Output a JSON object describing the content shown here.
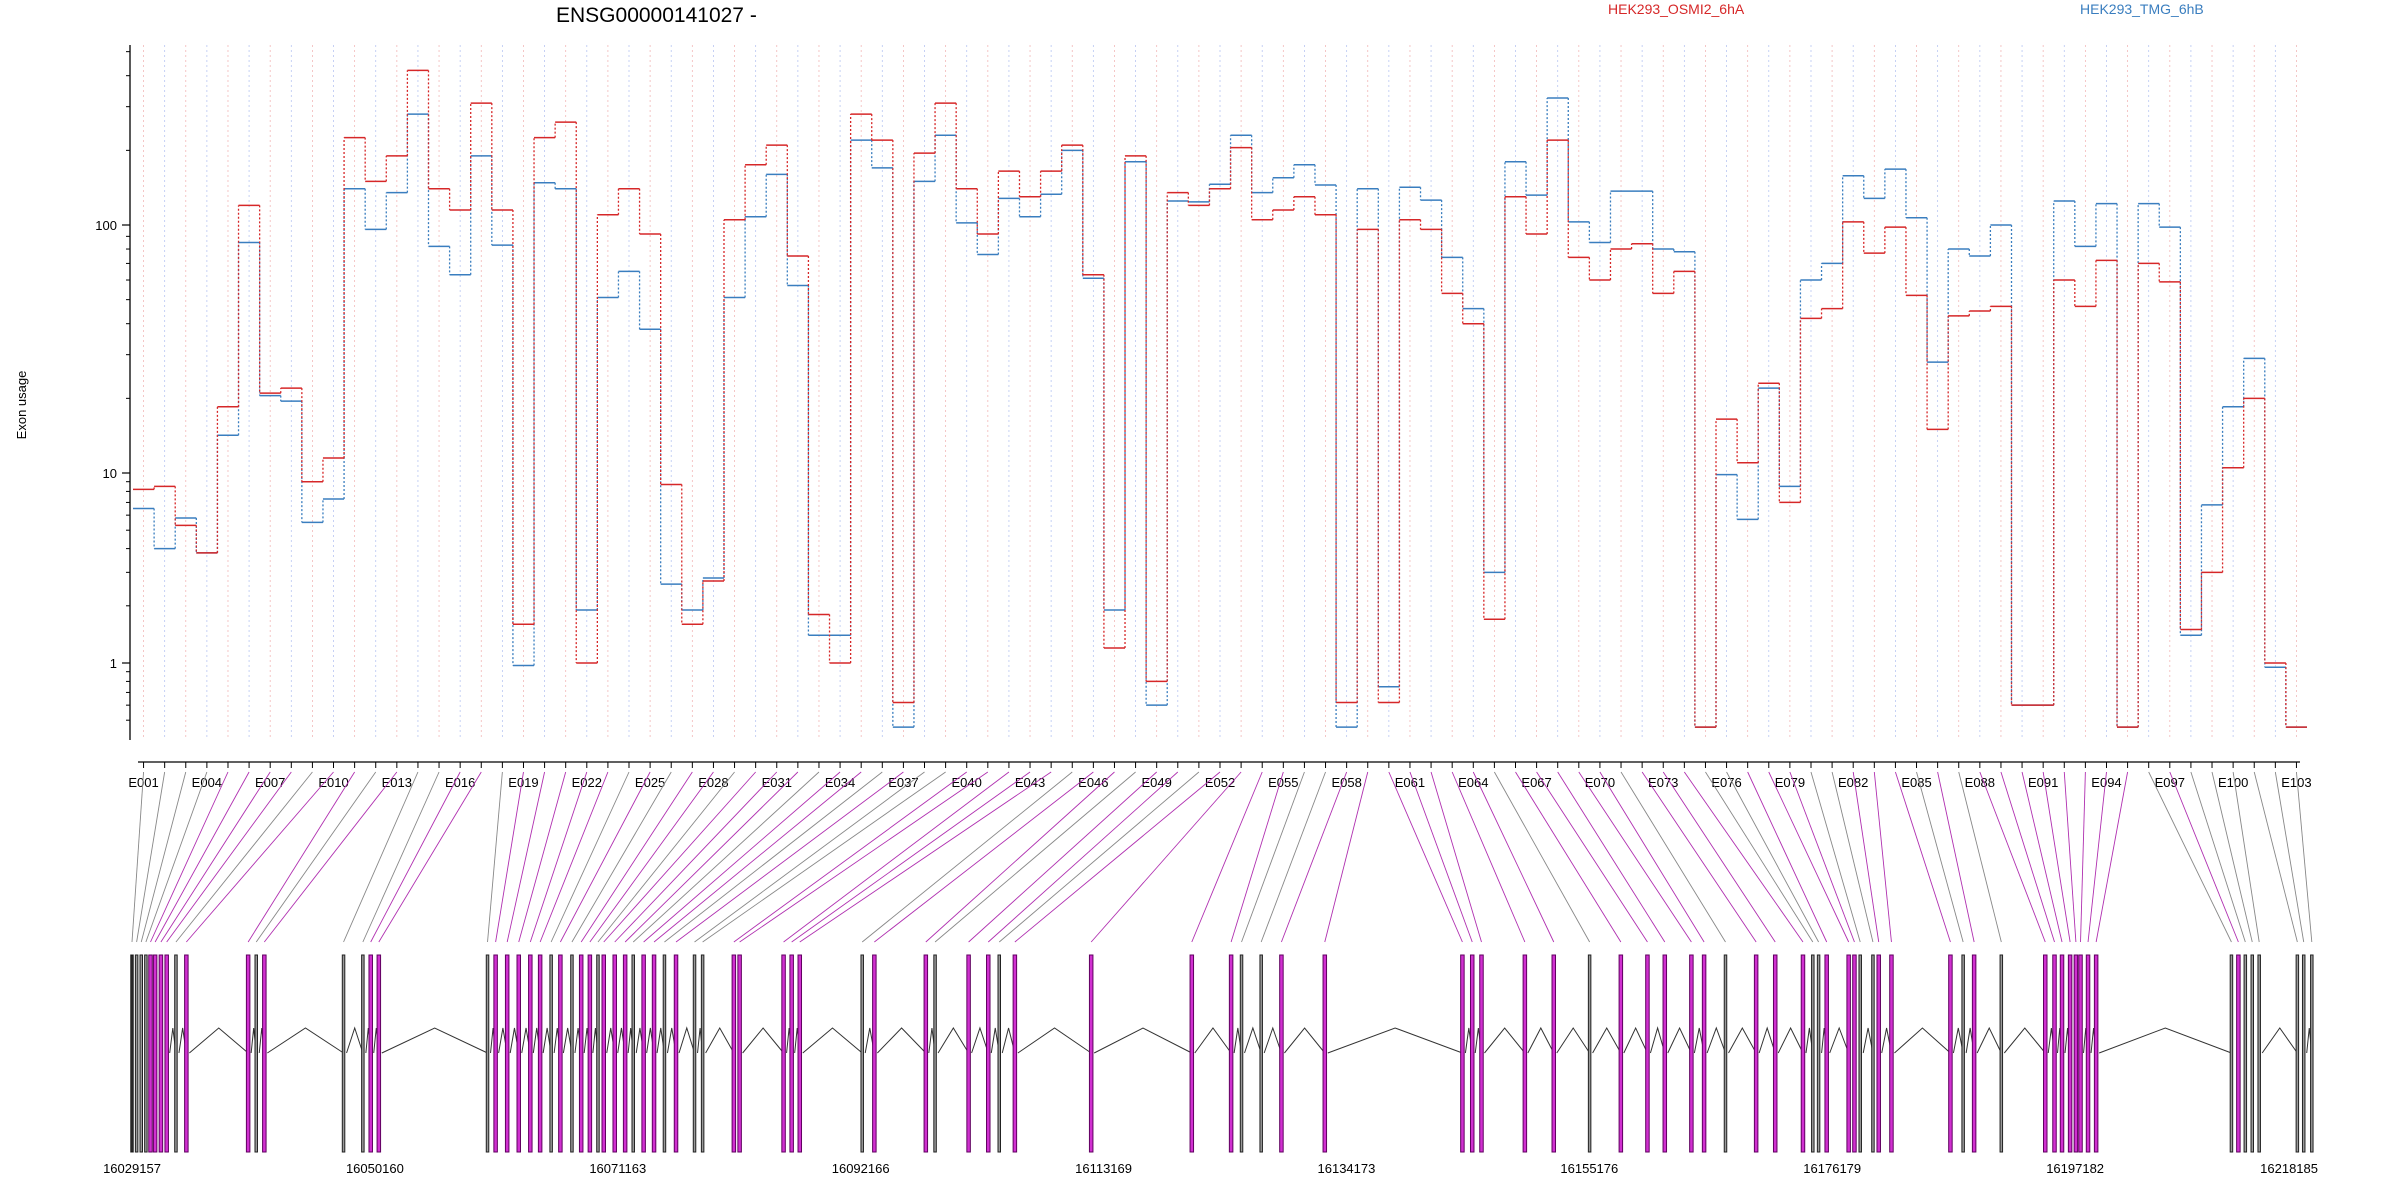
{
  "chart_data": {
    "type": "line",
    "title": "ENSG00000141027 -",
    "ylabel": "Exon usage",
    "xlabel": "",
    "y_scale": "log",
    "ylim": [
      0.45,
      500
    ],
    "y_ticks": [
      1,
      10,
      100
    ],
    "y_tick_labels": [
      "1",
      "10",
      "100"
    ],
    "grid": "vertical dotted lines at each exon, alternating red and blue",
    "legend_placement": "top",
    "colors": {
      "HEK293_OSMI2_6hA": "#d62728",
      "HEK293_TMG_6hB": "#3a7ebf",
      "constitutive": "#888888",
      "differential": "#c020c0"
    },
    "exons": [
      "E001",
      "E002",
      "E003",
      "E004",
      "E005",
      "E006",
      "E007",
      "E008",
      "E009",
      "E010",
      "E011",
      "E012",
      "E013",
      "E014",
      "E015",
      "E016",
      "E017",
      "E018",
      "E019",
      "E020",
      "E021",
      "E022",
      "E023",
      "E024",
      "E025",
      "E026",
      "E027",
      "E028",
      "E029",
      "E030",
      "E031",
      "E032",
      "E033",
      "E034",
      "E035",
      "E036",
      "E037",
      "E038",
      "E039",
      "E040",
      "E041",
      "E042",
      "E043",
      "E044",
      "E045",
      "E046",
      "E047",
      "E048",
      "E049",
      "E050",
      "E051",
      "E052",
      "E053",
      "E054",
      "E055",
      "E056",
      "E057",
      "E058",
      "E059",
      "E060",
      "E061",
      "E062",
      "E063",
      "E064",
      "E065",
      "E066",
      "E067",
      "E068",
      "E069",
      "E070",
      "E071",
      "E072",
      "E073",
      "E074",
      "E075",
      "E076",
      "E077",
      "E078",
      "E079",
      "E080",
      "E081",
      "E082",
      "E083",
      "E084",
      "E085",
      "E086",
      "E087",
      "E088",
      "E089",
      "E090",
      "E091",
      "E092",
      "E093",
      "E094",
      "E095",
      "E096",
      "E097",
      "E098",
      "E099",
      "E100",
      "E101",
      "E102",
      "E103"
    ],
    "exon_tick_labels": [
      "E001",
      "E004",
      "E007",
      "E010",
      "E013",
      "E016",
      "E019",
      "E022",
      "E025",
      "E028",
      "E031",
      "E034",
      "E037",
      "E040",
      "E043",
      "E046",
      "E049",
      "E052",
      "E055",
      "E058",
      "E061",
      "E064",
      "E067",
      "E070",
      "E073",
      "E076",
      "E079",
      "E082",
      "E085",
      "E088",
      "E091",
      "E094",
      "E097",
      "E100",
      "E103"
    ],
    "series": [
      {
        "name": "HEK293_OSMI2_6hA",
        "values": [
          8.2,
          8.5,
          5.3,
          3.8,
          18.5,
          120,
          21,
          22,
          9,
          11.5,
          225,
          150,
          190,
          420,
          140,
          115,
          310,
          115,
          1.6,
          225,
          260,
          1,
          110,
          140,
          92,
          8.7,
          1.6,
          2.7,
          105,
          175,
          210,
          75,
          1.8,
          1,
          280,
          220,
          0.62,
          195,
          310,
          140,
          92,
          165,
          130,
          165,
          210,
          63,
          1.2,
          190,
          0.8,
          135,
          120,
          140,
          205,
          105,
          115,
          130,
          110,
          0.62,
          96,
          0.62,
          105,
          96,
          53,
          40,
          1.7,
          130,
          92,
          220,
          74,
          60,
          80,
          84,
          53,
          65,
          0.46,
          16.5,
          11,
          23,
          7,
          42,
          46,
          103,
          77,
          98,
          52,
          15,
          43,
          45,
          47,
          0.6,
          0.6,
          60,
          47,
          72,
          0.46,
          70,
          59,
          1.5,
          3,
          10.5,
          20,
          1,
          0.46
        ]
      },
      {
        "name": "HEK293_TMG_6hB",
        "values": [
          6.5,
          4,
          5.8,
          3.8,
          14.2,
          85,
          20.5,
          19.5,
          5.5,
          7.3,
          140,
          96,
          135,
          280,
          82,
          63,
          190,
          83,
          0.97,
          148,
          140,
          1.9,
          51,
          65,
          38,
          2.6,
          1.9,
          2.8,
          51,
          108,
          160,
          57,
          1.4,
          1.4,
          220,
          170,
          0.46,
          150,
          230,
          102,
          76,
          128,
          108,
          133,
          200,
          61,
          1.9,
          180,
          0.6,
          125,
          124,
          146,
          230,
          135,
          155,
          175,
          145,
          0.46,
          140,
          0.75,
          142,
          126,
          74,
          46,
          3,
          180,
          132,
          325,
          103,
          85,
          137,
          137,
          80,
          78,
          0.46,
          9.8,
          5.7,
          22,
          8.5,
          60,
          70,
          158,
          128,
          168,
          107,
          28,
          80,
          75,
          100,
          0.6,
          0.6,
          125,
          82,
          122,
          0.46,
          122,
          98,
          1.4,
          6.8,
          18.5,
          29,
          0.95,
          0.46
        ]
      }
    ],
    "gene_model": {
      "coord_labels": [
        "16029157",
        "16050160",
        "16071163",
        "16092166",
        "16113169",
        "16134173",
        "16155176",
        "16176179",
        "16197182",
        "16218185"
      ],
      "coord_range": [
        16029157,
        16218185
      ],
      "exon_starts": [
        16029157,
        16029557,
        16029957,
        16030357,
        16030757,
        16031157,
        16031657,
        16032157,
        16032957,
        16033857,
        16039200,
        16039900,
        16040600,
        16047450,
        16049120,
        16049800,
        16050500,
        16059900,
        16060600,
        16061600,
        16062600,
        16063600,
        16064450,
        16065400,
        16066200,
        16067200,
        16068000,
        16068750,
        16069450,
        16069950,
        16070900,
        16071800,
        16072500,
        16073400,
        16074300,
        16075200,
        16076200,
        16077800,
        16078500,
        16081200,
        16081700,
        16085500,
        16086200,
        16086900,
        16092300,
        16093350,
        16097800,
        16098600,
        16101500,
        16103200,
        16104150,
        16105500,
        16112100,
        16120800,
        16124200,
        16125100,
        16126800,
        16128550,
        16132300,
        16144200,
        16145050,
        16145850,
        16149600,
        16152100,
        16155200,
        16157900,
        16160200,
        16161700,
        16164000,
        16165100,
        16166950,
        16169600,
        16171250,
        16173650,
        16174500,
        16175000,
        16175700,
        16177600,
        16178100,
        16178600,
        16179700,
        16180200,
        16181300,
        16186400,
        16187500,
        16188450,
        16190800,
        16194600,
        16195400,
        16196050,
        16196750,
        16197250,
        16197650,
        16198300,
        16199000,
        16210700,
        16211300,
        16211900,
        16212500,
        16213100,
        16216400,
        16216950,
        16217650
      ],
      "differential_exons": [
        "E005",
        "E006",
        "E007",
        "E008",
        "E010",
        "E011",
        "E013",
        "E016",
        "E017",
        "E019",
        "E020",
        "E021",
        "E022",
        "E023",
        "E025",
        "E027",
        "E028",
        "E030",
        "E031",
        "E032",
        "E034",
        "E035",
        "E037",
        "E040",
        "E041",
        "E042",
        "E043",
        "E044",
        "E046",
        "E047",
        "E049",
        "E050",
        "E052",
        "E053",
        "E054",
        "E055",
        "E058",
        "E059",
        "E060",
        "E061",
        "E062",
        "E063",
        "E064",
        "E066",
        "E067",
        "E068",
        "E069",
        "E070",
        "E072",
        "E073",
        "E074",
        "E077",
        "E078",
        "E079",
        "E082",
        "E083",
        "E084",
        "E086",
        "E088",
        "E089",
        "E090",
        "E091",
        "E092",
        "E093",
        "E094",
        "E095",
        "E097"
      ]
    }
  }
}
